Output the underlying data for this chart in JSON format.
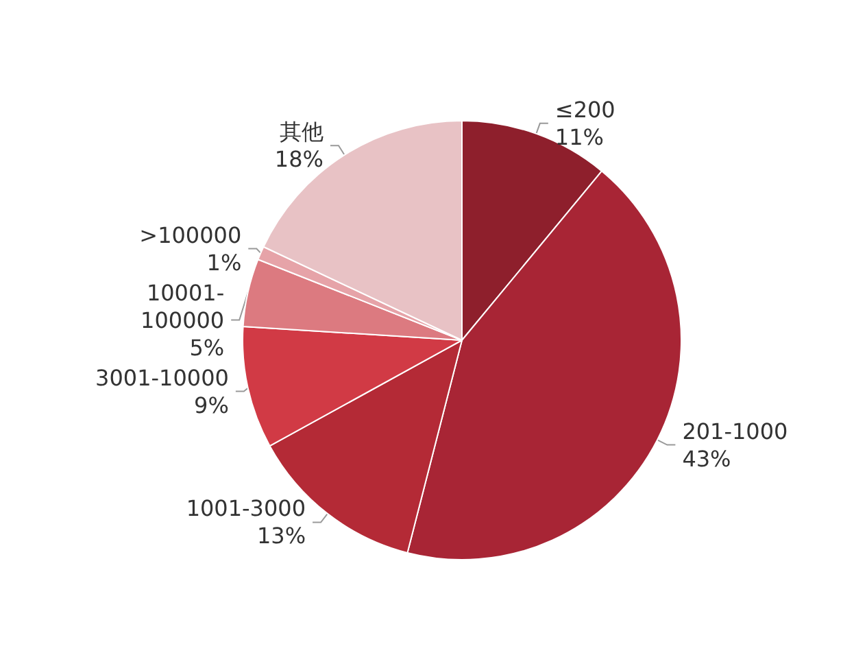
{
  "chart_data": {
    "type": "pie",
    "categories": [
      "≤200",
      "201-1000",
      "1001-3000",
      "3001-10000",
      "10001-\n100000",
      ">100000",
      "其他"
    ],
    "values": [
      11,
      43,
      13,
      9,
      5,
      1,
      18
    ],
    "value_labels": [
      "11%",
      "43%",
      "13%",
      "9%",
      "5%",
      "1%",
      "18%"
    ],
    "colors": [
      "#8e1f2c",
      "#a82535",
      "#b42a36",
      "#d13a45",
      "#dc7a80",
      "#e6a3a8",
      "#e8c2c5"
    ],
    "legend": false
  }
}
